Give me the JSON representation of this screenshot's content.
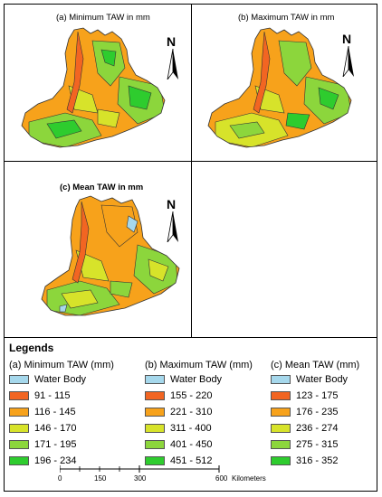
{
  "panels": [
    {
      "title": "(a) Minimum TAW  in mm",
      "north": "N",
      "bold": false
    },
    {
      "title": "(b) Maximum TAW  in mm",
      "north": "N",
      "bold": false
    },
    {
      "title": "(c) Mean TAW  in mm",
      "north": "N",
      "bold": true
    }
  ],
  "legend": {
    "title": "Legends",
    "columns": [
      {
        "heading": "(a) Minimum TAW (mm)",
        "items": [
          {
            "label": "Water Body",
            "color": "#a6d8ec"
          },
          {
            "label": "91 - 115",
            "color": "#f26522"
          },
          {
            "label": "116 - 145",
            "color": "#f7a21b"
          },
          {
            "label": "146 - 170",
            "color": "#d7e32a"
          },
          {
            "label": "171 - 195",
            "color": "#8cd63c"
          },
          {
            "label": "196 - 234",
            "color": "#2ecc2e"
          }
        ]
      },
      {
        "heading": "(b) Maximum TAW (mm)",
        "items": [
          {
            "label": "Water Body",
            "color": "#a6d8ec"
          },
          {
            "label": "155 - 220",
            "color": "#f26522"
          },
          {
            "label": "221 - 310",
            "color": "#f7a21b"
          },
          {
            "label": "311 - 400",
            "color": "#d7e32a"
          },
          {
            "label": "401 - 450",
            "color": "#8cd63c"
          },
          {
            "label": "451 - 512",
            "color": "#2ecc2e"
          }
        ]
      },
      {
        "heading": "(c) Mean TAW (mm)",
        "items": [
          {
            "label": "Water Body",
            "color": "#a6d8ec"
          },
          {
            "label": "123 - 175",
            "color": "#f26522"
          },
          {
            "label": "176 - 235",
            "color": "#f7a21b"
          },
          {
            "label": "236 - 274",
            "color": "#d7e32a"
          },
          {
            "label": "275 - 315",
            "color": "#8cd63c"
          },
          {
            "label": "316 - 352",
            "color": "#2ecc2e"
          }
        ]
      }
    ]
  },
  "scale": {
    "ticks": [
      "0",
      "150",
      "300",
      "600"
    ],
    "unit": "Kilometers"
  }
}
